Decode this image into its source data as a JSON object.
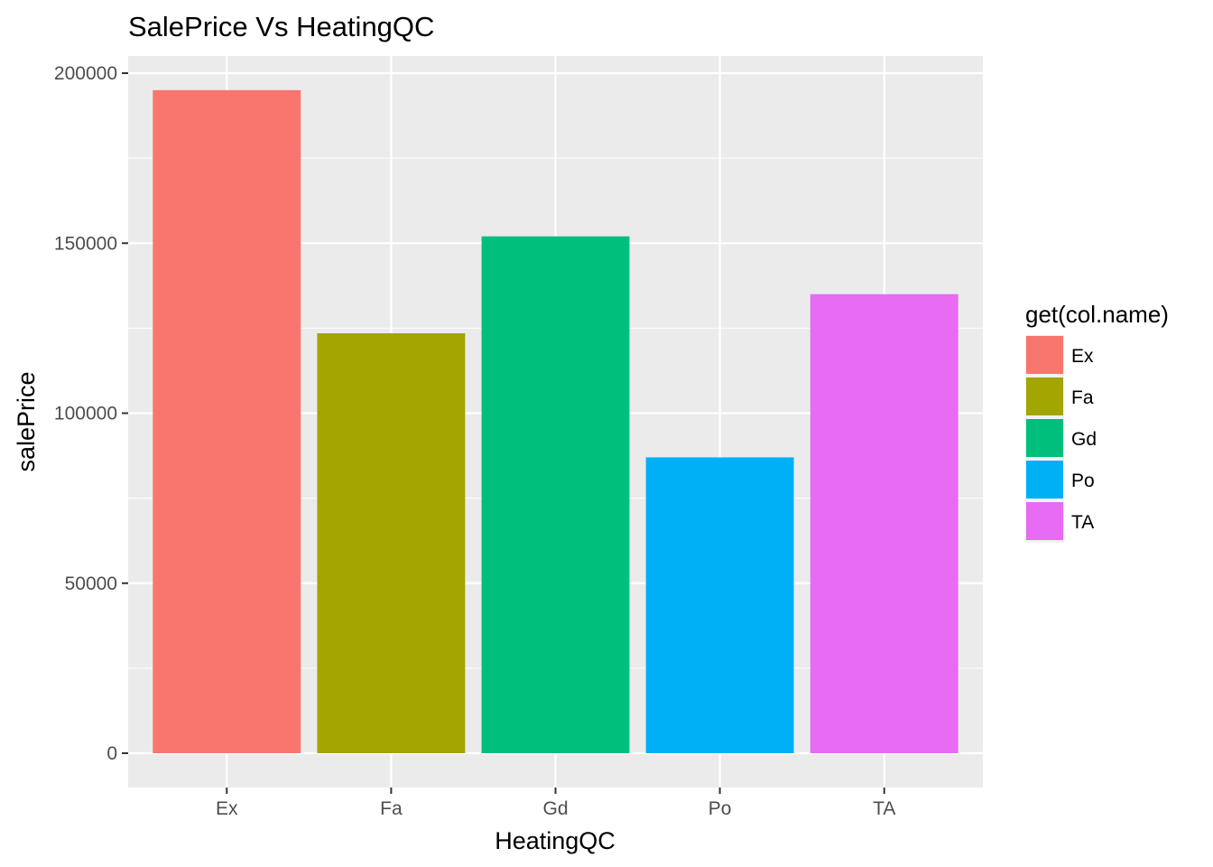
{
  "chart_data": {
    "type": "bar",
    "title": "SalePrice Vs HeatingQC",
    "xlabel": "HeatingQC",
    "ylabel": "salePrice",
    "categories": [
      "Ex",
      "Fa",
      "Gd",
      "Po",
      "TA"
    ],
    "values": [
      195000,
      123500,
      152000,
      87000,
      135000
    ],
    "colors": [
      "#F8766D",
      "#A3A500",
      "#00BF7D",
      "#00B0F6",
      "#E76BF3"
    ],
    "ylim": [
      0,
      205000
    ],
    "yticks": [
      0,
      50000,
      100000,
      150000,
      200000
    ],
    "ytick_labels": [
      "0",
      "50000",
      "100000",
      "150000",
      "200000"
    ],
    "grid": true,
    "legend": {
      "title": "get(col.name)",
      "position": "right",
      "entries": [
        "Ex",
        "Fa",
        "Gd",
        "Po",
        "TA"
      ]
    }
  }
}
